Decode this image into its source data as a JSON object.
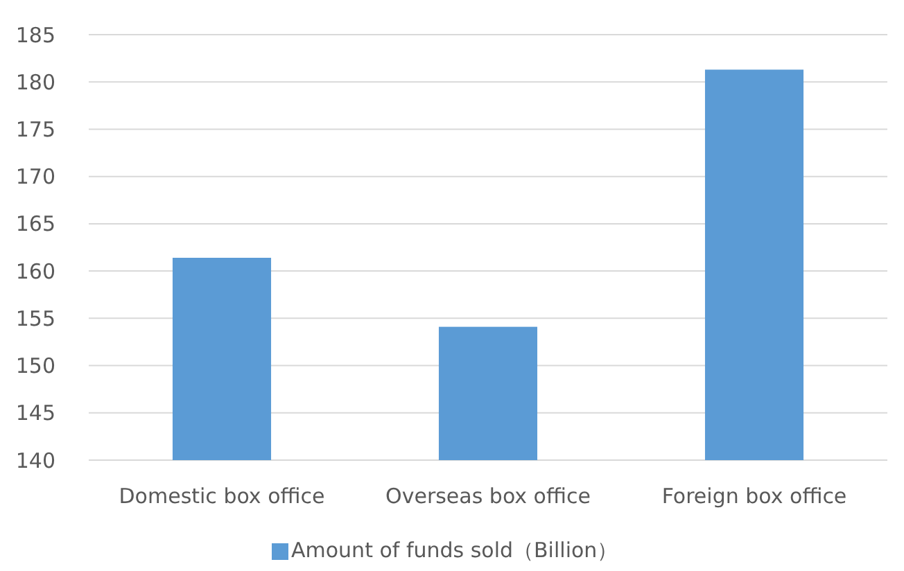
{
  "chart_data": {
    "type": "bar",
    "categories": [
      "Domestic box office",
      "Overseas box office",
      "Foreign box office"
    ],
    "series": [
      {
        "name": "Amount of funds sold（Billion）",
        "color": "#5b9bd5",
        "values": [
          161.4,
          154.1,
          181.3
        ]
      }
    ],
    "ylim": [
      140,
      185
    ],
    "yticks": [
      140,
      145,
      150,
      155,
      160,
      165,
      170,
      175,
      180,
      185
    ],
    "grid": "y",
    "legend": "bottom"
  }
}
